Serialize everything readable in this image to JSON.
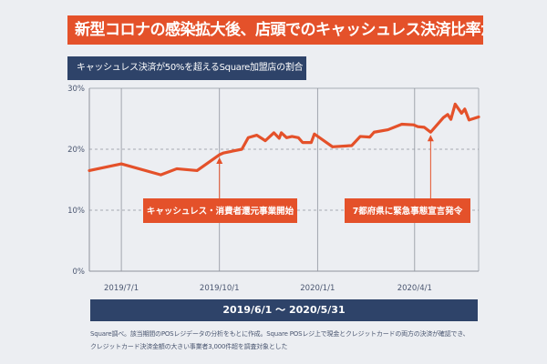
{
  "chart_data": {
    "type": "line",
    "title": "新型コロナの感染拡大後、店頭でのキャッシュレス決済比率が増加",
    "subtitle": "キャッシュレス決済が50%を超えるSquare加盟店の割合",
    "xlabel": "2019/6/1 〜 2020/5/31",
    "xlim": [
      "2019-06-01",
      "2020-05-31"
    ],
    "ylim": [
      0,
      30
    ],
    "y_ticks": [
      "0%",
      "10%",
      "20%",
      "30%"
    ],
    "y_tick_values": [
      0,
      10,
      20,
      30
    ],
    "x_ticks": [
      {
        "date": "2019-07-01",
        "label": "2019/7/1"
      },
      {
        "date": "2019-10-01",
        "label": "2019/10/1"
      },
      {
        "date": "2020-01-01",
        "label": "2020/1/1"
      },
      {
        "date": "2020-04-01",
        "label": "2020/4/1"
      }
    ],
    "grid": true,
    "series": [
      {
        "color": "#e4512a",
        "points": [
          [
            "2019-06-01",
            16.5
          ],
          [
            "2019-07-01",
            17.6
          ],
          [
            "2019-08-07",
            15.8
          ],
          [
            "2019-08-22",
            16.8
          ],
          [
            "2019-09-10",
            16.5
          ],
          [
            "2019-10-01",
            19.1
          ],
          [
            "2019-10-05",
            19.4
          ],
          [
            "2019-10-22",
            20.0
          ],
          [
            "2019-10-28",
            21.9
          ],
          [
            "2019-11-05",
            22.3
          ],
          [
            "2019-11-13",
            21.4
          ],
          [
            "2019-11-21",
            22.7
          ],
          [
            "2019-11-26",
            21.8
          ],
          [
            "2019-11-28",
            22.7
          ],
          [
            "2019-12-03",
            21.9
          ],
          [
            "2019-12-08",
            22.1
          ],
          [
            "2019-12-14",
            21.9
          ],
          [
            "2019-12-18",
            21.1
          ],
          [
            "2019-12-26",
            21.1
          ],
          [
            "2019-12-29",
            22.5
          ],
          [
            "2020-01-15",
            20.4
          ],
          [
            "2020-02-02",
            20.6
          ],
          [
            "2020-02-10",
            22.1
          ],
          [
            "2020-02-19",
            22.0
          ],
          [
            "2020-02-23",
            22.8
          ],
          [
            "2020-03-07",
            23.2
          ],
          [
            "2020-03-20",
            24.1
          ],
          [
            "2020-03-31",
            24.0
          ],
          [
            "2020-04-04",
            23.7
          ],
          [
            "2020-04-10",
            23.6
          ],
          [
            "2020-04-16",
            22.8
          ],
          [
            "2020-04-28",
            25.2
          ],
          [
            "2020-05-02",
            25.7
          ],
          [
            "2020-05-05",
            24.9
          ],
          [
            "2020-05-09",
            27.4
          ],
          [
            "2020-05-15",
            25.9
          ],
          [
            "2020-05-18",
            26.6
          ],
          [
            "2020-05-22",
            24.8
          ],
          [
            "2020-05-31",
            25.3
          ]
        ]
      }
    ],
    "annotations": [
      {
        "date": "2019-10-01",
        "value": 19.1,
        "text": "キャッシュレス・消費者還元事業開始"
      },
      {
        "date": "2020-04-16",
        "value": 22.8,
        "text": "7都府県に緊急事態宣言発令"
      }
    ]
  },
  "footnote": [
    "Square調べ。該当期間のPOSレジデータの分析をもとに作成。Square POSレジ上で現金とクレジットカードの両方の決済が確認でき、",
    "クレジットカード決済金額の大きい事業者3,000件超を調査対象とした"
  ],
  "colors": {
    "accent": "#e4512a",
    "navy": "#2e4369",
    "background": "#eceef2"
  }
}
